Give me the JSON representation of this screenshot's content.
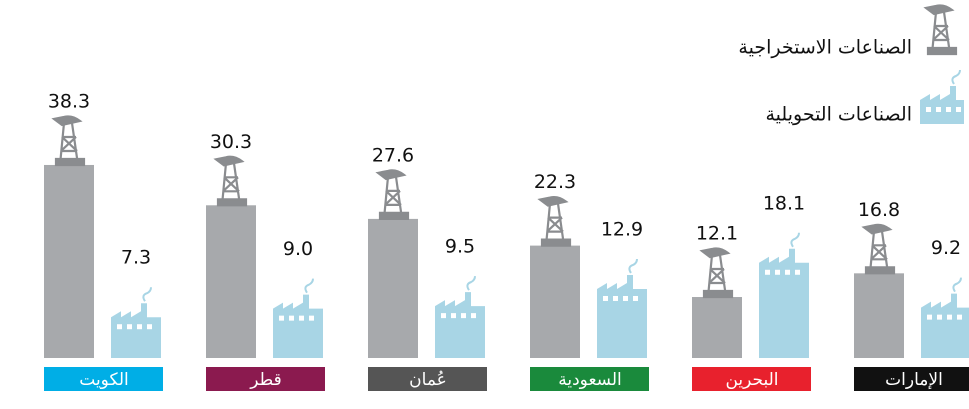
{
  "chart_data": {
    "type": "bar",
    "categories": [
      "الكويت",
      "قطر",
      "عُمان",
      "السعودية",
      "البحرين",
      "الإمارات"
    ],
    "category_colors": [
      "#00aee6",
      "#8b1a4f",
      "#555555",
      "#1a8a3c",
      "#e8212d",
      "#111111"
    ],
    "series": [
      {
        "name": "الصناعات الاستخراجية",
        "color": "#a7a9ac",
        "values": [
          38.3,
          30.3,
          27.6,
          22.3,
          12.1,
          16.8
        ],
        "value_labels": [
          "38.3",
          "30.3",
          "27.6",
          "22.3",
          "12.1",
          "16.8"
        ]
      },
      {
        "name": "الصناعات التحويلية",
        "color": "#a8d5e5",
        "values": [
          7.3,
          9.0,
          9.5,
          12.9,
          18.1,
          9.2
        ],
        "value_labels": [
          "7.3",
          "9.0",
          "9.5",
          "12.9",
          "18.1",
          "9.2"
        ]
      }
    ]
  }
}
